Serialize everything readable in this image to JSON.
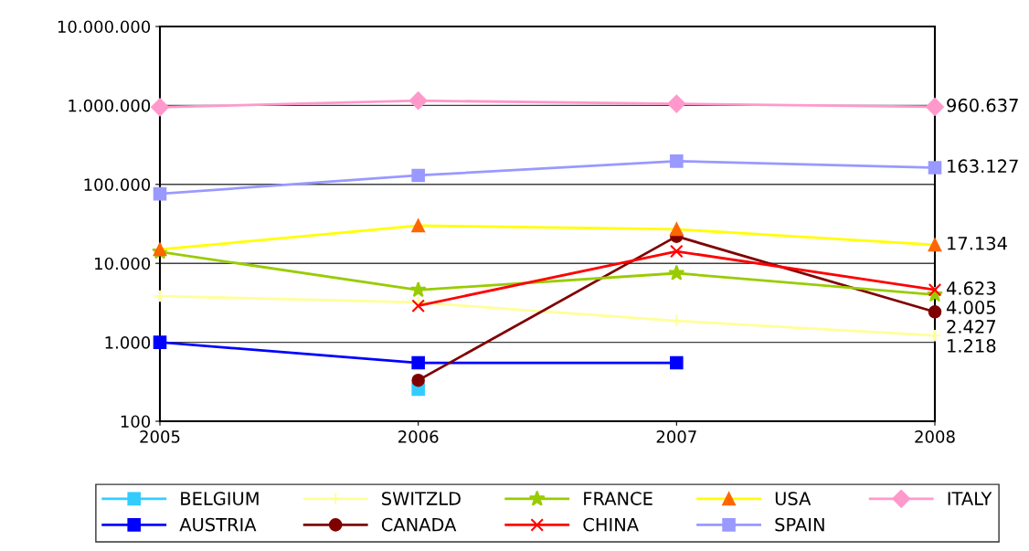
{
  "chart_data": {
    "type": "line",
    "categories": [
      "2005",
      "2006",
      "2007",
      "2008"
    ],
    "log": true,
    "ylim": [
      100,
      10000000
    ],
    "yticks": [
      {
        "value": 100,
        "label": "100"
      },
      {
        "value": 1000,
        "label": "1.000"
      },
      {
        "value": 10000,
        "label": "10.000"
      },
      {
        "value": 100000,
        "label": "100.000"
      },
      {
        "value": 1000000,
        "label": "1.000.000"
      },
      {
        "value": 10000000,
        "label": "10.000.000"
      }
    ],
    "grid": "y",
    "legend": "bottom",
    "series": [
      {
        "name": "BELGIUM",
        "color": "#33ccff",
        "marker": "square",
        "values": [
          null,
          254,
          null,
          null
        ]
      },
      {
        "name": "AUSTRIA",
        "color": "#0000ff",
        "marker": "square",
        "values": [
          1000,
          550,
          550,
          null
        ]
      },
      {
        "name": "SWITZLD",
        "color": "#ffff99",
        "marker": "plus",
        "values": [
          3850,
          3200,
          1870,
          1218
        ],
        "value_labels": [
          null,
          null,
          null,
          "1.218"
        ]
      },
      {
        "name": "CANADA",
        "color": "#800000",
        "marker": "circle",
        "values": [
          null,
          330,
          22000,
          2427
        ],
        "value_labels": [
          null,
          null,
          null,
          "2.427"
        ]
      },
      {
        "name": "FRANCE",
        "color": "#99cc00",
        "marker": "star",
        "values": [
          14000,
          4600,
          7500,
          4005
        ],
        "value_labels": [
          null,
          null,
          null,
          "4.005"
        ]
      },
      {
        "name": "CHINA",
        "color": "#ff0000",
        "marker": "cross",
        "values": [
          null,
          2900,
          14200,
          4623
        ],
        "value_labels": [
          null,
          null,
          null,
          "4.623"
        ]
      },
      {
        "name": "USA",
        "color": "#ffff00",
        "marker": "triangle",
        "colors": [
          "#ff6600",
          "#ff6600",
          "#ff6600",
          "#ff6600"
        ],
        "values": [
          15000,
          30000,
          27000,
          17134
        ],
        "value_labels": [
          null,
          null,
          null,
          "17.134"
        ]
      },
      {
        "name": "SPAIN",
        "color": "#9999ff",
        "marker": "square",
        "values": [
          76000,
          130000,
          197000,
          163127
        ],
        "value_labels": [
          null,
          null,
          null,
          "163.127"
        ]
      },
      {
        "name": "ITALY",
        "color": "#ff99cc",
        "marker": "diamond",
        "values": [
          950000,
          1150000,
          1050000,
          960637
        ],
        "value_labels": [
          null,
          null,
          null,
          "960.637"
        ]
      }
    ]
  }
}
